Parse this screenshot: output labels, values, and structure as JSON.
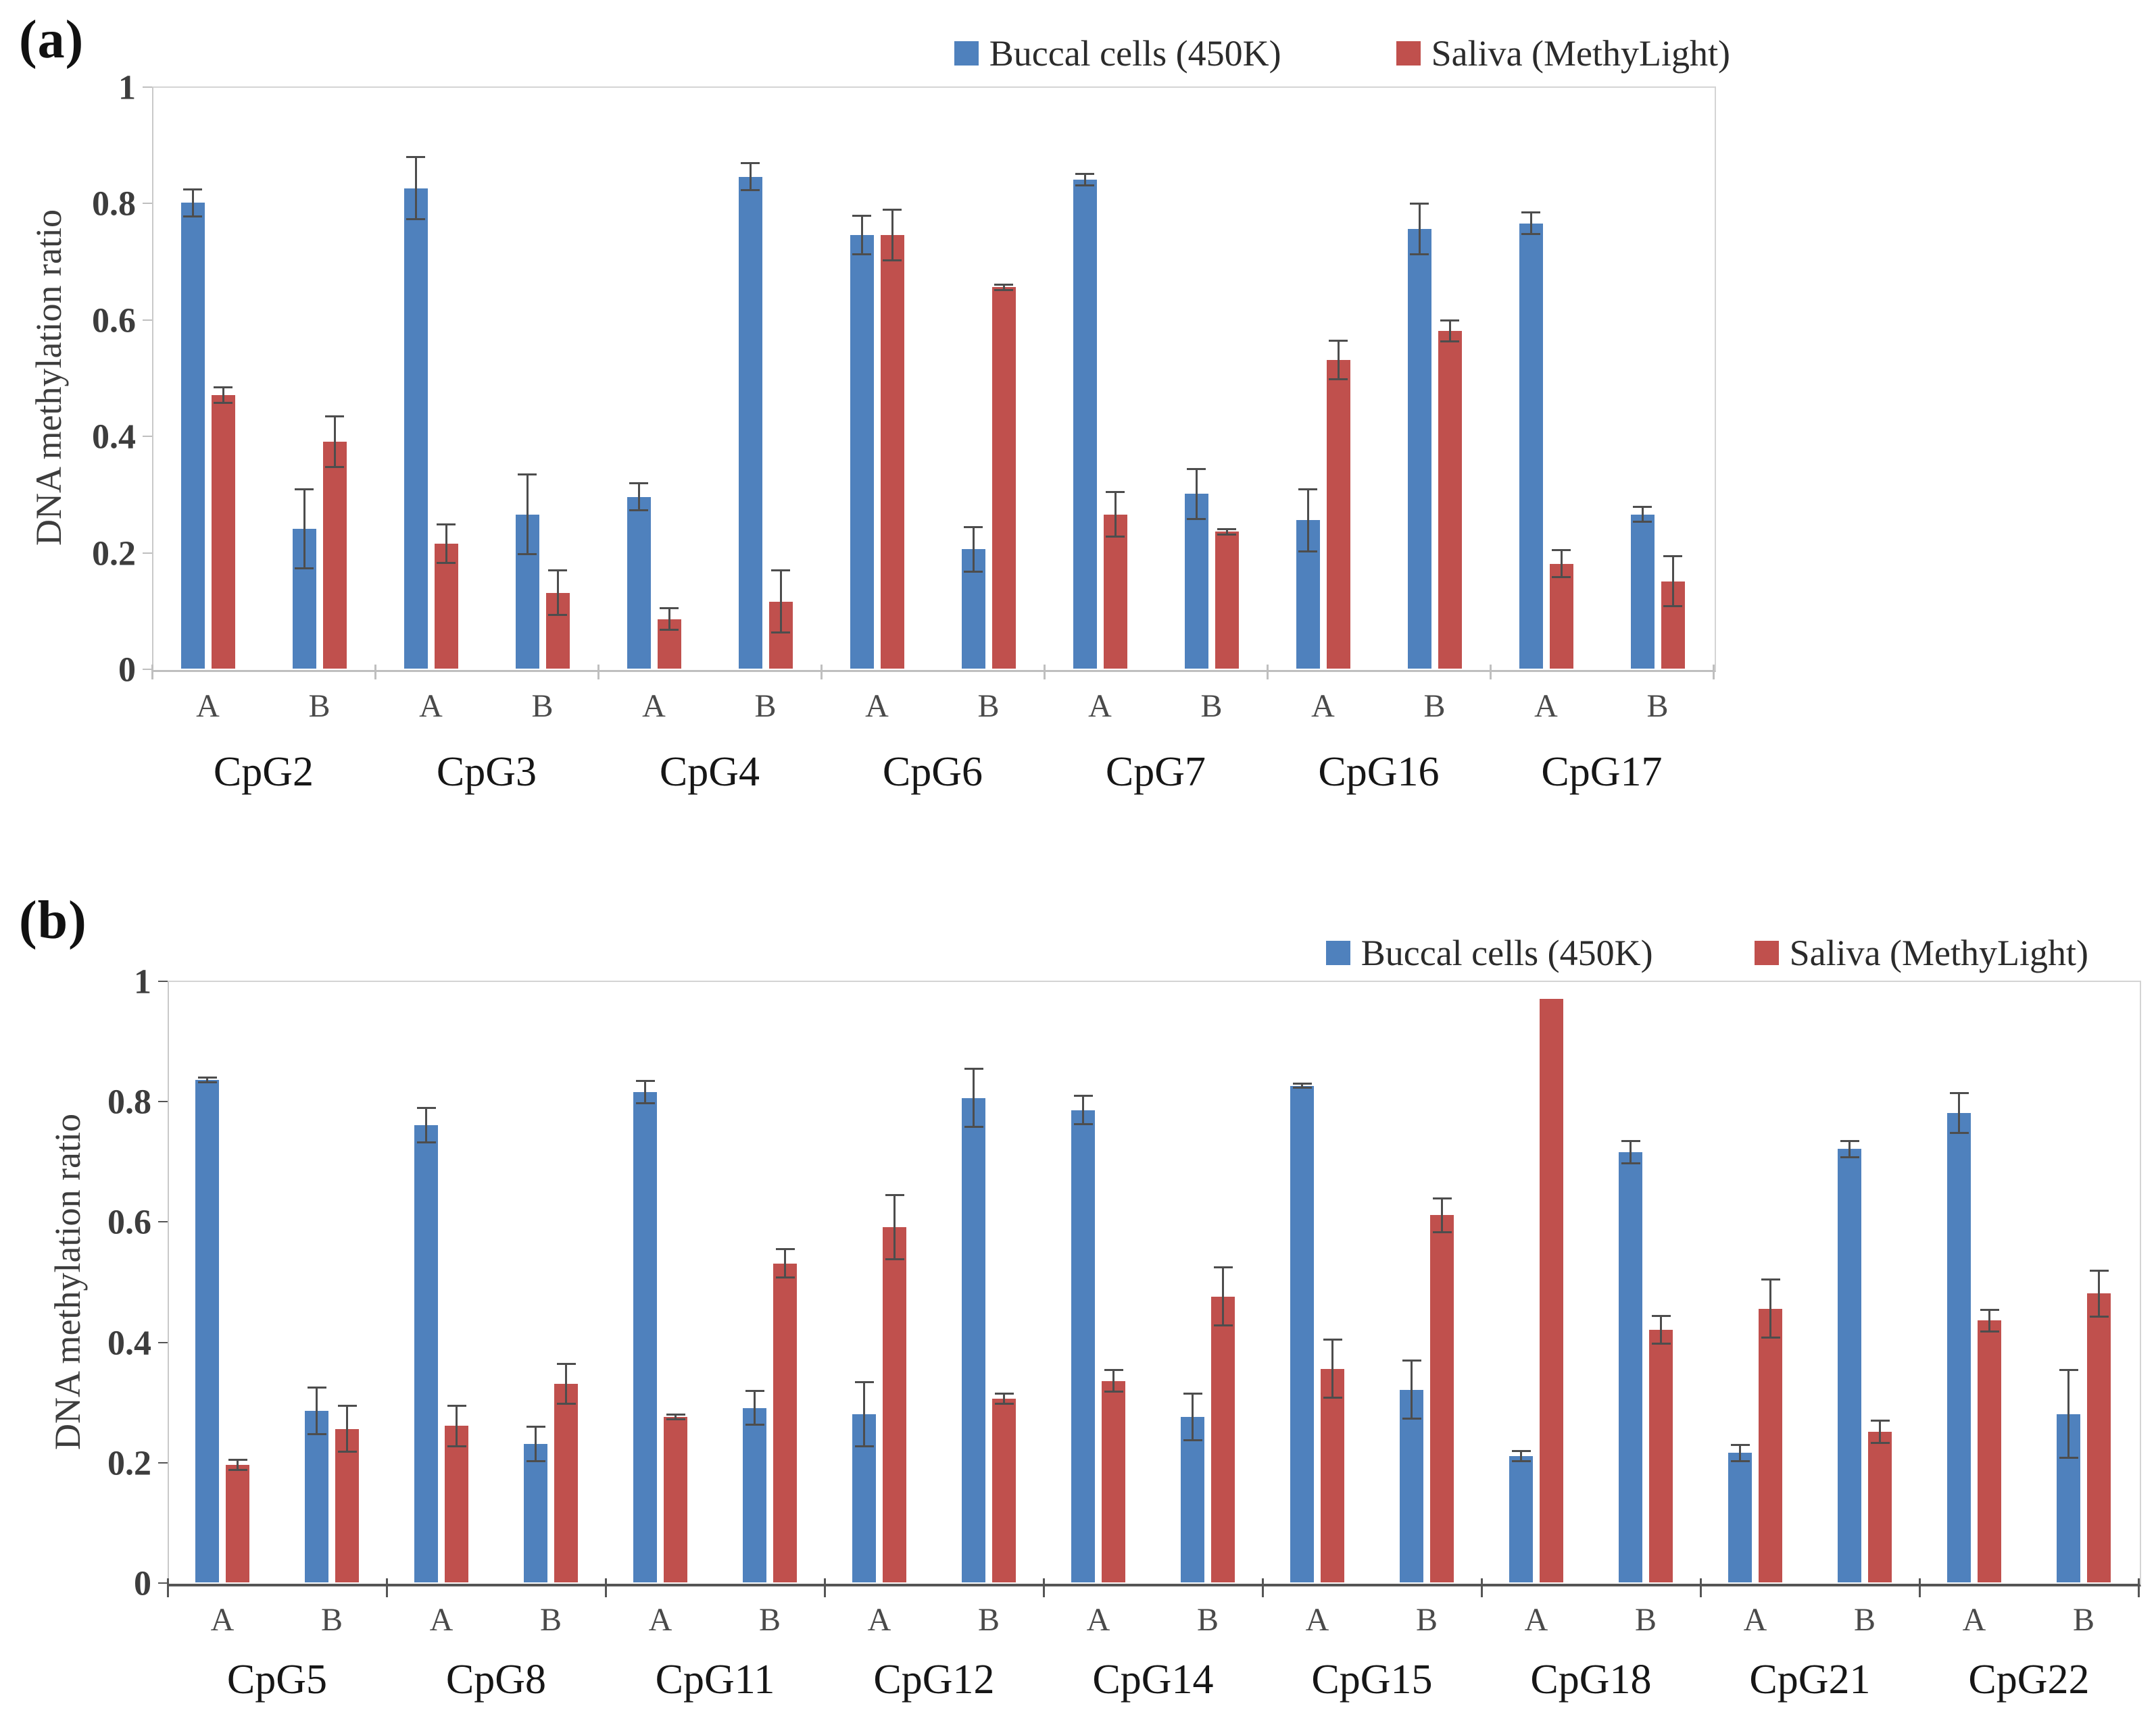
{
  "colors": {
    "buccal_blue": "#4F81BD",
    "saliva_red": "#C0504D",
    "error_bar": "#4d4d4d",
    "axis_light": "#bfbfbf",
    "axis_dark": "#555555",
    "tick_text": "#3d3d3d"
  },
  "chart_data": [
    {
      "type": "bar",
      "panel_label": "(a)",
      "title": "",
      "ylabel": "DNA methylation ratio",
      "ylim": [
        0,
        1
      ],
      "yticks": [
        0,
        0.2,
        0.4,
        0.6,
        0.8,
        1
      ],
      "ytick_labels": [
        "0",
        "0.2",
        "0.4",
        "0.6",
        "0.8",
        "1"
      ],
      "grid": "off",
      "legend_position": "top-right",
      "groups": [
        "CpG2",
        "CpG3",
        "CpG4",
        "CpG6",
        "CpG7",
        "CpG16",
        "CpG17"
      ],
      "subgroups": [
        "A",
        "B"
      ],
      "series": [
        {
          "name": "Buccal cells (450K)",
          "color_key": "buccal_blue",
          "values": [
            [
              0.8,
              0.24
            ],
            [
              0.825,
              0.265
            ],
            [
              0.295,
              0.845
            ],
            [
              0.745,
              0.205
            ],
            [
              0.84,
              0.3
            ],
            [
              0.255,
              0.755
            ],
            [
              0.765,
              0.265
            ]
          ],
          "errors": [
            [
              0.025,
              0.07
            ],
            [
              0.055,
              0.07
            ],
            [
              0.025,
              0.025
            ],
            [
              0.035,
              0.04
            ],
            [
              0.012,
              0.045
            ],
            [
              0.055,
              0.045
            ],
            [
              0.02,
              0.015
            ]
          ]
        },
        {
          "name": "Saliva (MethyLight)",
          "color_key": "saliva_red",
          "values": [
            [
              0.47,
              0.39
            ],
            [
              0.215,
              0.13
            ],
            [
              0.085,
              0.115
            ],
            [
              0.745,
              0.655
            ],
            [
              0.265,
              0.235
            ],
            [
              0.53,
              0.58
            ],
            [
              0.18,
              0.15
            ]
          ],
          "errors": [
            [
              0.015,
              0.045
            ],
            [
              0.035,
              0.04
            ],
            [
              0.02,
              0.055
            ],
            [
              0.045,
              0.006
            ],
            [
              0.04,
              0.006
            ],
            [
              0.035,
              0.02
            ],
            [
              0.025,
              0.045
            ]
          ]
        }
      ]
    },
    {
      "type": "bar",
      "panel_label": "(b)",
      "title": "",
      "ylabel": "DNA methylation ratio",
      "ylim": [
        0,
        1
      ],
      "yticks": [
        0,
        0.2,
        0.4,
        0.6,
        0.8,
        1
      ],
      "ytick_labels": [
        "0",
        "0.2",
        "0.4",
        "0.6",
        "0.8",
        "1"
      ],
      "grid": "off",
      "legend_position": "top-right",
      "groups": [
        "CpG5",
        "CpG8",
        "CpG11",
        "CpG12",
        "CpG14",
        "CpG15",
        "CpG18",
        "CpG21",
        "CpG22"
      ],
      "subgroups": [
        "A",
        "B"
      ],
      "series": [
        {
          "name": "Buccal cells (450K)",
          "color_key": "buccal_blue",
          "values": [
            [
              0.835,
              0.285
            ],
            [
              0.76,
              0.23
            ],
            [
              0.815,
              0.29
            ],
            [
              0.28,
              0.805
            ],
            [
              0.785,
              0.275
            ],
            [
              0.825,
              0.32
            ],
            [
              0.21,
              0.715
            ],
            [
              0.215,
              0.72
            ],
            [
              0.78,
              0.28
            ]
          ],
          "errors": [
            [
              0.006,
              0.04
            ],
            [
              0.03,
              0.03
            ],
            [
              0.02,
              0.03
            ],
            [
              0.055,
              0.05
            ],
            [
              0.025,
              0.04
            ],
            [
              0.005,
              0.05
            ],
            [
              0.01,
              0.02
            ],
            [
              0.015,
              0.015
            ],
            [
              0.035,
              0.075
            ]
          ]
        },
        {
          "name": "Saliva (MethyLight)",
          "color_key": "saliva_red",
          "values": [
            [
              0.195,
              0.255
            ],
            [
              0.26,
              0.33
            ],
            [
              0.275,
              0.53
            ],
            [
              0.59,
              0.305
            ],
            [
              0.335,
              0.475
            ],
            [
              0.355,
              0.61
            ],
            [
              0.97,
              0.42
            ],
            [
              0.455,
              0.25
            ],
            [
              0.435,
              0.48
            ]
          ],
          "errors": [
            [
              0.01,
              0.04
            ],
            [
              0.035,
              0.035
            ],
            [
              0.006,
              0.025
            ],
            [
              0.055,
              0.01
            ],
            [
              0.02,
              0.05
            ],
            [
              0.05,
              0.03
            ],
            [
              0,
              0.025
            ],
            [
              0.05,
              0.02
            ],
            [
              0.02,
              0.04
            ]
          ]
        }
      ]
    }
  ]
}
